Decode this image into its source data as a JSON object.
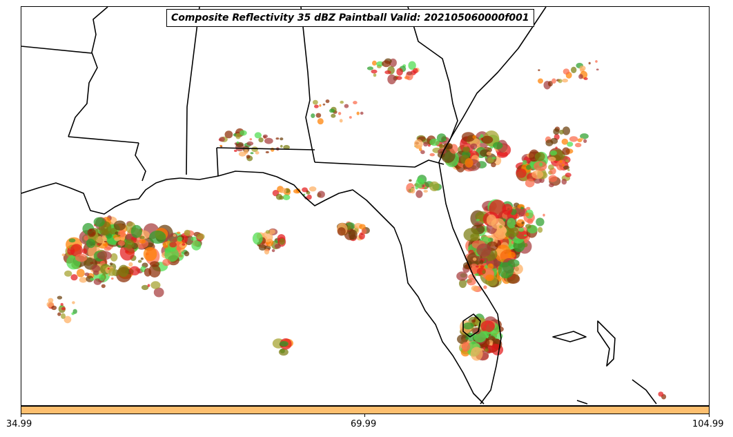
{
  "map": {
    "title": "Composite Reflectivity 35 dBZ Paintball Valid: 202105060000f001",
    "region": "Southeastern United States and Gulf of Mexico",
    "state_boundaries": true,
    "coastlines": true
  },
  "colorbar": {
    "color": "#fdbf6f",
    "ticks": [
      "34.99",
      "69.99",
      "104.99"
    ]
  },
  "member_colors": [
    "#e31a1c",
    "#fb6a4a",
    "#ff7f00",
    "#fdae61",
    "#6a3d0a",
    "#8c2d04",
    "#7a7d10",
    "#a3a12b",
    "#2ca02c",
    "#4ddc4d",
    "#a63b3b"
  ],
  "colors": {
    "land_lines": "#000000",
    "background": "#ffffff"
  }
}
